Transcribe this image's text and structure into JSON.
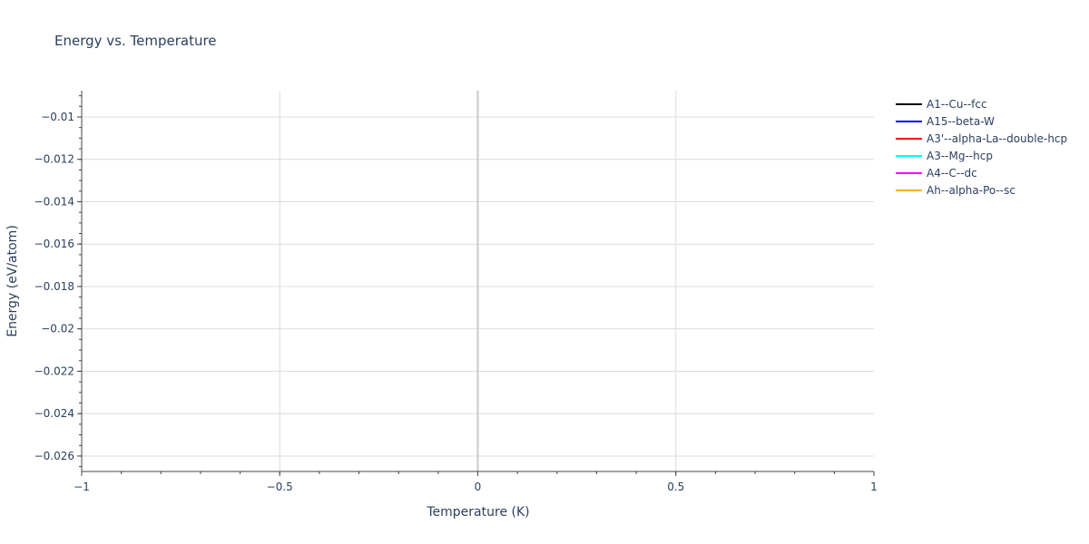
{
  "chart_data": {
    "type": "line",
    "title": "Energy vs. Temperature",
    "xlabel": "Temperature (K)",
    "ylabel": "Energy (eV/atom)",
    "xlim": [
      -1,
      1
    ],
    "ylim": [
      -0.02673,
      -0.00876
    ],
    "x_ticks": [
      -1,
      -0.5,
      0,
      0.5,
      1
    ],
    "x_tick_labels": [
      "−1",
      "−0.5",
      "0",
      "0.5",
      "1"
    ],
    "y_ticks": [
      -0.01,
      -0.012,
      -0.014,
      -0.016,
      -0.018,
      -0.02,
      -0.022,
      -0.024,
      -0.026
    ],
    "y_tick_labels": [
      "−0.01",
      "−0.012",
      "−0.014",
      "−0.016",
      "−0.018",
      "−0.02",
      "−0.022",
      "−0.024",
      "−0.026"
    ],
    "grid": true,
    "legend_position": "right",
    "series": [
      {
        "name": "A1--Cu--fcc",
        "color": "#000000",
        "x": [],
        "y": []
      },
      {
        "name": "A15--beta-W",
        "color": "#0000ff",
        "x": [],
        "y": []
      },
      {
        "name": "A3'--alpha-La--double-hcp",
        "color": "#ff0000",
        "x": [],
        "y": []
      },
      {
        "name": "A3--Mg--hcp",
        "color": "#00ffff",
        "x": [],
        "y": []
      },
      {
        "name": "A4--C--dc",
        "color": "#ff00ff",
        "x": [],
        "y": []
      },
      {
        "name": "Ah--alpha-Po--sc",
        "color": "#f0b51d",
        "x": [],
        "y": []
      }
    ]
  }
}
